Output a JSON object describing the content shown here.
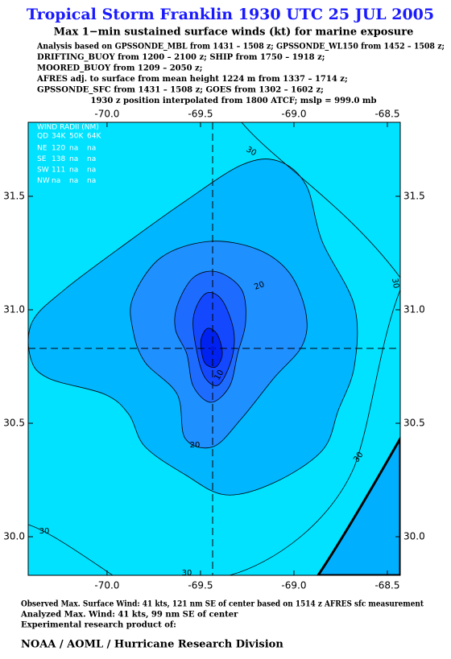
{
  "header": {
    "title": "Tropical Storm Franklin 1930 UTC 25 JUL 2005",
    "subtitle": "Max 1−min sustained surface winds (kt) for marine exposure",
    "notes": [
      "Analysis based on  GPSSONDE_MBL from 1431 – 1508 z;  GPSSONDE_WL150 from 1452 – 1508 z;",
      "DRIFTING_BUOY from 1200 – 2100 z;  SHIP from 1750 – 1918 z;",
      "MOORED_BUOY from 1209 – 2050 z;",
      "AFRES adj. to surface from mean height 1224 m from 1337 – 1714 z;",
      "GPSSONDE_SFC from 1431 – 1508 z;  GOES from 1302 – 1602 z;",
      "1930 z position interpolated from 1800 ATCF; mslp = 999.0 mb"
    ]
  },
  "map": {
    "xlim": [
      -70.422,
      -68.431
    ],
    "ylim": [
      29.83,
      31.826
    ],
    "xticks": [
      {
        "value": -70,
        "label": "-70.0"
      },
      {
        "value": -69.5,
        "label": "-69.5"
      },
      {
        "value": -69,
        "label": "-69.0"
      },
      {
        "value": -68.5,
        "label": "-68.5"
      }
    ],
    "yticks": [
      {
        "value": 30,
        "label": "30.0"
      },
      {
        "value": 30.5,
        "label": "30.5"
      },
      {
        "value": 31,
        "label": "31.0"
      },
      {
        "value": 31.5,
        "label": "31.5"
      }
    ],
    "contour_labels": [
      "30",
      "30",
      "30",
      "30",
      "30",
      "20",
      "20",
      "10"
    ],
    "wind_radii": {
      "title": "WIND RADII (NM)",
      "header": [
        "QD",
        "34K",
        "50K",
        "64K"
      ],
      "rows": [
        [
          "NE",
          "120",
          "na",
          "na"
        ],
        [
          "SE",
          "138",
          "na",
          "na"
        ],
        [
          "SW",
          "111",
          "na",
          "na"
        ],
        [
          "NW",
          "na",
          "na",
          "na"
        ]
      ]
    }
  },
  "footer": {
    "lines": [
      "Observed Max. Surface Wind: 41 kts, 121 nm SE of center based on 1514 z AFRES sfc measurement",
      "Analyzed Max. Wind: 41 kts, 99 nm SE of center",
      "Experimental research product of:"
    ],
    "org": "NOAA / AOML / Hurricane Research Division"
  }
}
